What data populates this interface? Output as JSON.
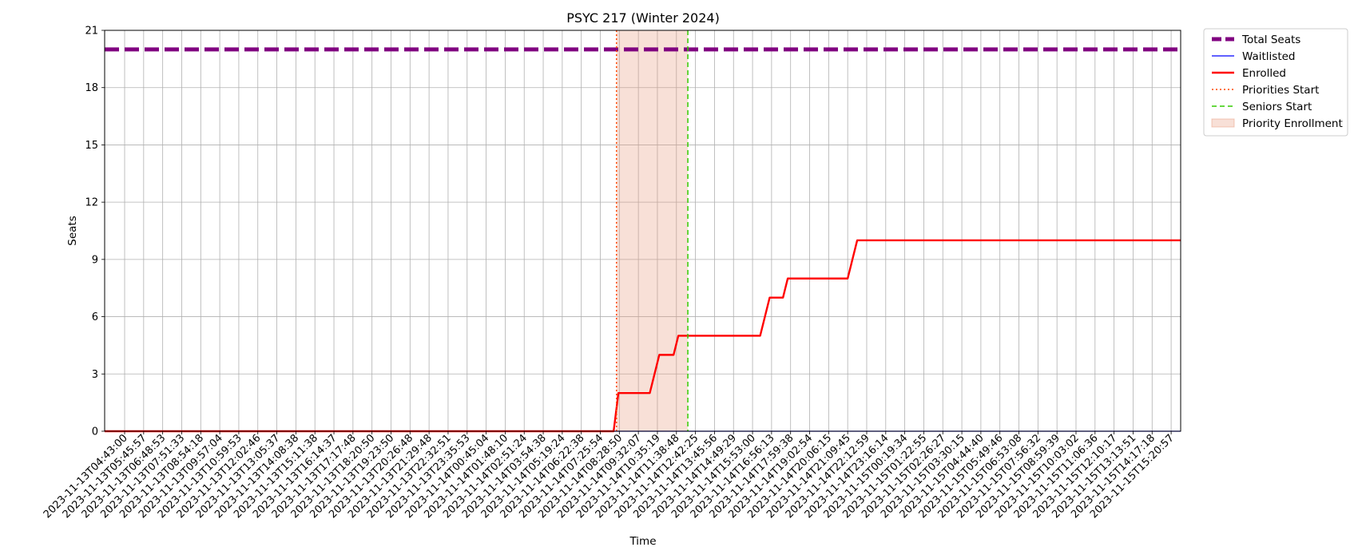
{
  "chart_data": {
    "type": "line",
    "title": "PSYC 217 (Winter 2024)",
    "xlabel": "Time",
    "ylabel": "Seats",
    "ylim": [
      0,
      21
    ],
    "yticks": [
      0,
      3,
      6,
      9,
      12,
      15,
      18,
      21
    ],
    "grid": true,
    "legend_position": "outside-top-right",
    "x": [
      "2023-11-13T04:43:00",
      "2023-11-13T05:45:57",
      "2023-11-13T06:48:53",
      "2023-11-13T07:51:33",
      "2023-11-13T08:54:18",
      "2023-11-13T09:57:04",
      "2023-11-13T10:59:53",
      "2023-11-13T12:02:46",
      "2023-11-13T13:05:37",
      "2023-11-13T14:08:38",
      "2023-11-13T15:11:38",
      "2023-11-13T16:14:37",
      "2023-11-13T17:17:48",
      "2023-11-13T18:20:50",
      "2023-11-13T19:23:50",
      "2023-11-13T20:26:48",
      "2023-11-13T21:29:48",
      "2023-11-13T22:32:51",
      "2023-11-13T23:35:53",
      "2023-11-14T00:45:04",
      "2023-11-14T01:48:10",
      "2023-11-14T02:51:24",
      "2023-11-14T03:54:38",
      "2023-11-14T05:19:24",
      "2023-11-14T06:22:38",
      "2023-11-14T07:25:54",
      "2023-11-14T08:28:50",
      "2023-11-14T09:32:07",
      "2023-11-14T10:35:19",
      "2023-11-14T11:38:48",
      "2023-11-14T12:42:25",
      "2023-11-14T13:45:56",
      "2023-11-14T14:49:29",
      "2023-11-14T15:53:00",
      "2023-11-14T16:56:13",
      "2023-11-14T17:59:38",
      "2023-11-14T19:02:54",
      "2023-11-14T20:06:15",
      "2023-11-14T21:09:45",
      "2023-11-14T22:12:59",
      "2023-11-14T23:16:14",
      "2023-11-15T00:19:34",
      "2023-11-15T01:22:55",
      "2023-11-15T02:26:27",
      "2023-11-15T03:30:15",
      "2023-11-15T04:44:40",
      "2023-11-15T05:49:46",
      "2023-11-15T06:53:08",
      "2023-11-15T07:56:32",
      "2023-11-15T08:59:39",
      "2023-11-15T10:03:02",
      "2023-11-15T11:06:36",
      "2023-11-15T12:10:17",
      "2023-11-15T13:13:51",
      "2023-11-15T14:17:18",
      "2023-11-15T15:20:57"
    ],
    "series": [
      {
        "name": "Total Seats",
        "color": "#800080",
        "style": "dashed-thick",
        "points": [
          [
            -1.05,
            20
          ],
          [
            55.5,
            20
          ]
        ]
      },
      {
        "name": "Waitlisted",
        "color": "#0000ff",
        "style": "solid-thin",
        "points": [
          [
            -1.05,
            0
          ],
          [
            55.5,
            0
          ]
        ]
      },
      {
        "name": "Enrolled",
        "color": "#ff0000",
        "style": "solid",
        "points": [
          [
            -1.05,
            0
          ],
          [
            25.7,
            0
          ],
          [
            25.95,
            2
          ],
          [
            27.6,
            2
          ],
          [
            28.1,
            4
          ],
          [
            28.85,
            4
          ],
          [
            29.1,
            5
          ],
          [
            33.4,
            5
          ],
          [
            33.9,
            7
          ],
          [
            34.6,
            7
          ],
          [
            34.85,
            8
          ],
          [
            38.0,
            8
          ],
          [
            38.5,
            10
          ],
          [
            55.5,
            10
          ]
        ]
      }
    ],
    "markers": [
      {
        "name": "Priorities Start",
        "x": 25.85,
        "color": "#ff4500",
        "style": "dotted"
      },
      {
        "name": "Seniors Start",
        "x": 29.6,
        "color": "#33cc00",
        "style": "dashed"
      }
    ],
    "spans": [
      {
        "name": "Priority Enrollment",
        "x0": 25.85,
        "x1": 29.6,
        "color": "#e8987a",
        "opacity": 0.3
      }
    ],
    "legend": [
      "Total Seats",
      "Waitlisted",
      "Enrolled",
      "Priorities Start",
      "Seniors Start",
      "Priority Enrollment"
    ]
  }
}
